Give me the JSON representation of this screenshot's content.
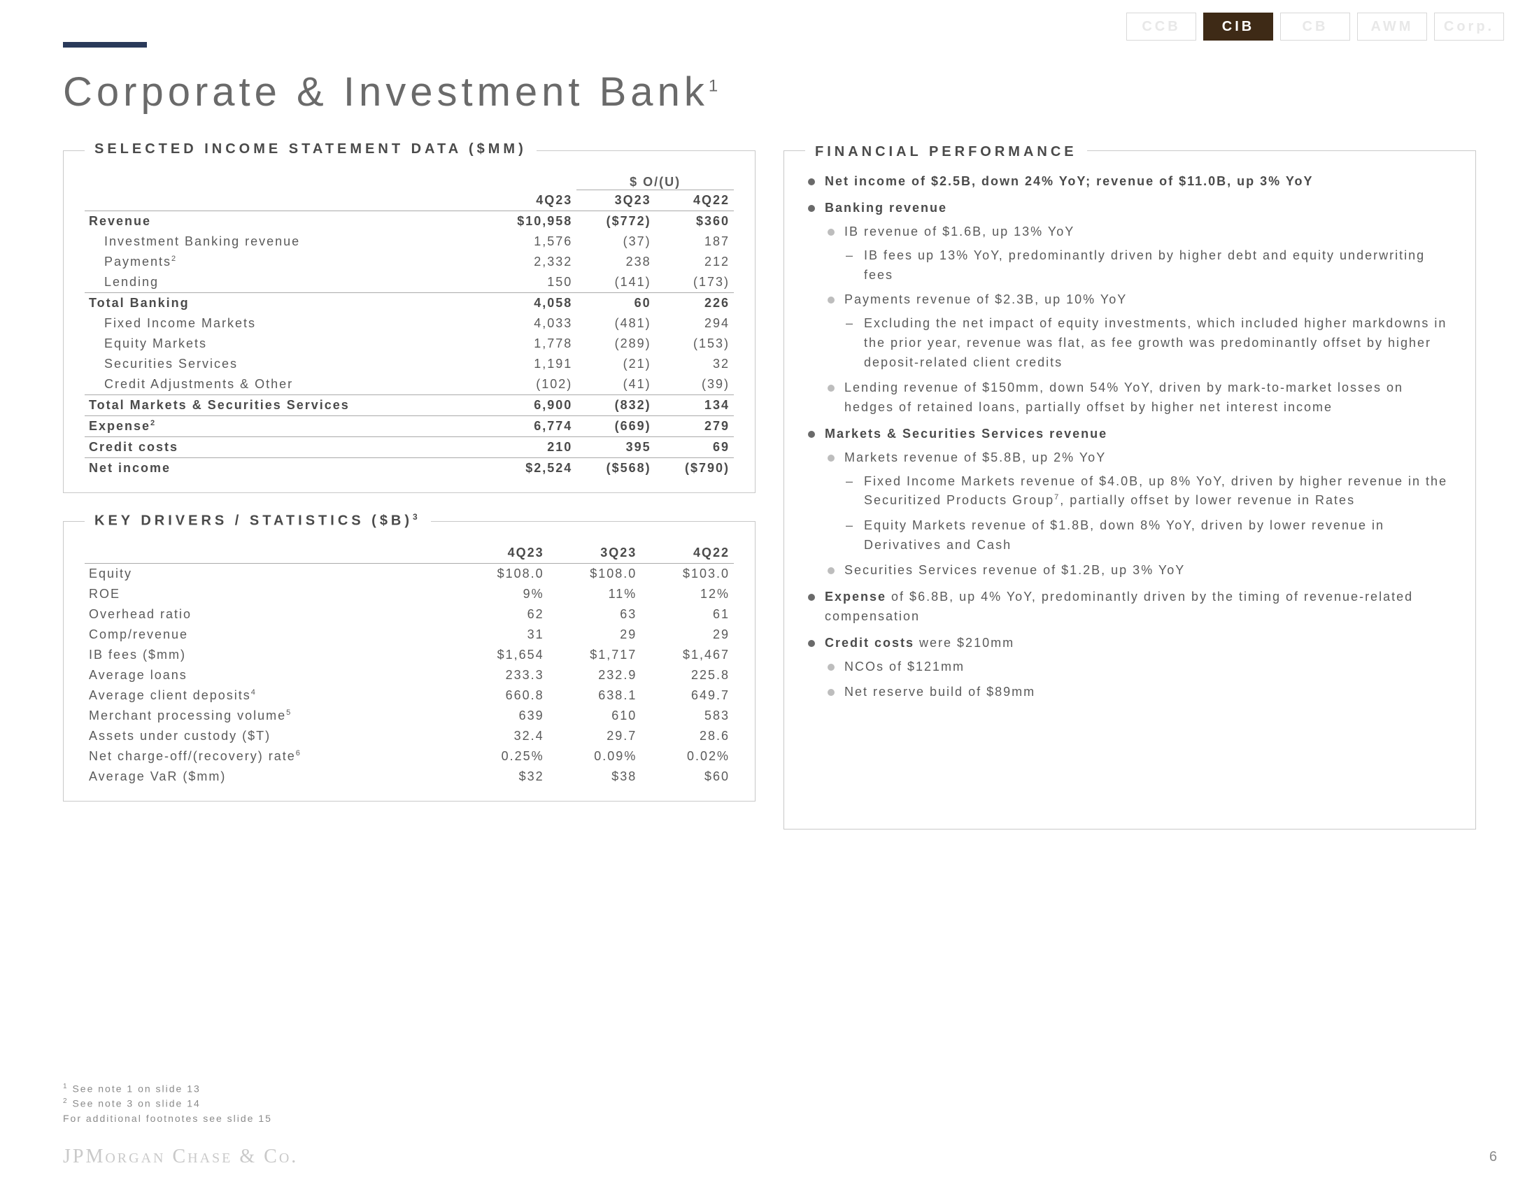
{
  "nav": {
    "tabs": [
      {
        "label": "CCB",
        "active": false
      },
      {
        "label": "CIB",
        "active": true
      },
      {
        "label": "CB",
        "active": false
      },
      {
        "label": "AWM",
        "active": false
      },
      {
        "label": "Corp.",
        "active": false
      }
    ]
  },
  "title": "Corporate & Investment Bank",
  "title_sup": "1",
  "income": {
    "legend": "SELECTED INCOME STATEMENT DATA ($MM)",
    "ou_label": "$ O/(U)",
    "cols": [
      "4Q23",
      "3Q23",
      "4Q22"
    ],
    "rows": [
      {
        "label": "Revenue",
        "vals": [
          "$10,958",
          "($772)",
          "$360"
        ],
        "bold": true,
        "indent": 0
      },
      {
        "label": "Investment Banking revenue",
        "vals": [
          "1,576",
          "(37)",
          "187"
        ],
        "indent": 1
      },
      {
        "label": "Payments",
        "sup": "2",
        "vals": [
          "2,332",
          "238",
          "212"
        ],
        "indent": 1
      },
      {
        "label": "Lending",
        "vals": [
          "150",
          "(141)",
          "(173)"
        ],
        "indent": 1
      },
      {
        "label": "Total Banking",
        "vals": [
          "4,058",
          "60",
          "226"
        ],
        "bold": true,
        "indent": 0,
        "rule": true
      },
      {
        "label": "Fixed Income Markets",
        "vals": [
          "4,033",
          "(481)",
          "294"
        ],
        "indent": 1
      },
      {
        "label": "Equity Markets",
        "vals": [
          "1,778",
          "(289)",
          "(153)"
        ],
        "indent": 1
      },
      {
        "label": "Securities Services",
        "vals": [
          "1,191",
          "(21)",
          "32"
        ],
        "indent": 1
      },
      {
        "label": "Credit Adjustments & Other",
        "vals": [
          "(102)",
          "(41)",
          "(39)"
        ],
        "indent": 1
      },
      {
        "label": "Total Markets & Securities Services",
        "vals": [
          "6,900",
          "(832)",
          "134"
        ],
        "bold": true,
        "indent": 0,
        "rule": true
      },
      {
        "label": "Expense",
        "sup": "2",
        "vals": [
          "6,774",
          "(669)",
          "279"
        ],
        "bold": true,
        "indent": 0,
        "rule": true
      },
      {
        "label": "Credit costs",
        "vals": [
          "210",
          "395",
          "69"
        ],
        "bold": true,
        "indent": 0,
        "rule": true
      },
      {
        "label": "Net income",
        "vals": [
          "$2,524",
          "($568)",
          "($790)"
        ],
        "bold": true,
        "indent": 0,
        "rule": true
      }
    ]
  },
  "drivers": {
    "legend": "KEY DRIVERS / STATISTICS ($B)",
    "legend_sup": "3",
    "cols": [
      "4Q23",
      "3Q23",
      "4Q22"
    ],
    "rows": [
      {
        "label": "Equity",
        "vals": [
          "$108.0",
          "$108.0",
          "$103.0"
        ]
      },
      {
        "label": "ROE",
        "vals": [
          "9%",
          "11%",
          "12%"
        ]
      },
      {
        "label": "Overhead ratio",
        "vals": [
          "62",
          "63",
          "61"
        ]
      },
      {
        "label": "Comp/revenue",
        "vals": [
          "31",
          "29",
          "29"
        ]
      },
      {
        "label": "IB fees ($mm)",
        "vals": [
          "$1,654",
          "$1,717",
          "$1,467"
        ]
      },
      {
        "label": "Average loans",
        "vals": [
          "233.3",
          "232.9",
          "225.8"
        ]
      },
      {
        "label": "Average client deposits",
        "sup": "4",
        "vals": [
          "660.8",
          "638.1",
          "649.7"
        ]
      },
      {
        "label": "Merchant processing volume",
        "sup": "5",
        "vals": [
          "639",
          "610",
          "583"
        ]
      },
      {
        "label": "Assets under custody ($T)",
        "vals": [
          "32.4",
          "29.7",
          "28.6"
        ]
      },
      {
        "label": "Net charge-off/(recovery) rate",
        "sup": "6",
        "vals": [
          "0.25%",
          "0.09%",
          "0.02%"
        ]
      },
      {
        "label": "Average VaR ($mm)",
        "vals": [
          "$32",
          "$38",
          "$60"
        ]
      }
    ]
  },
  "fp": {
    "legend": "FINANCIAL PERFORMANCE",
    "items": [
      {
        "html": "<b>Net income of $2.5B, down 24% YoY; revenue of $11.0B, up 3% YoY</b>"
      },
      {
        "html": "<b>Banking revenue</b>",
        "children": [
          {
            "html": "IB revenue of $1.6B, up 13% YoY",
            "children": [
              {
                "html": "IB fees up 13% YoY, predominantly driven by higher debt and equity underwriting fees"
              }
            ]
          },
          {
            "html": "Payments revenue of $2.3B, up 10% YoY",
            "children": [
              {
                "html": "Excluding the net impact of equity investments, which included higher markdowns in the prior year, revenue was flat, as fee growth was predominantly offset by higher deposit-related client credits"
              }
            ]
          },
          {
            "html": "Lending revenue of $150mm, down 54% YoY, driven by mark-to-market losses on hedges of retained loans, partially offset by higher net interest income"
          }
        ]
      },
      {
        "html": "<b>Markets & Securities Services revenue</b>",
        "children": [
          {
            "html": "Markets revenue of $5.8B, up 2% YoY",
            "children": [
              {
                "html": "Fixed Income Markets revenue of $4.0B, up 8% YoY, driven by higher revenue in the Securitized Products Group<sup>7</sup>, partially offset by lower revenue in Rates"
              },
              {
                "html": "Equity Markets revenue of $1.8B, down 8% YoY, driven by lower revenue in Derivatives and Cash"
              }
            ]
          },
          {
            "html": "Securities Services revenue of $1.2B, up 3% YoY"
          }
        ]
      },
      {
        "html": "<b>Expense</b> of $6.8B, up 4% YoY, predominantly driven by the timing of revenue-related compensation"
      },
      {
        "html": "<b>Credit costs</b> were $210mm",
        "children": [
          {
            "html": "NCOs of $121mm"
          },
          {
            "html": "Net reserve build of $89mm"
          }
        ]
      }
    ]
  },
  "footnotes": [
    {
      "sup": "1",
      "text": "See note 1 on slide 13"
    },
    {
      "sup": "2",
      "text": "See note 3 on slide 14"
    },
    {
      "sup": "",
      "text": "For additional footnotes see slide 15"
    }
  ],
  "footer_brand": "JPMorgan Chase & Co.",
  "page_number": "6"
}
